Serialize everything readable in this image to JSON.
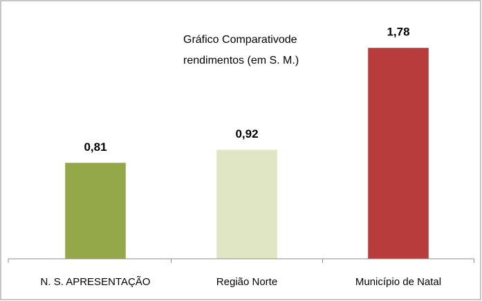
{
  "chart_data": {
    "type": "bar",
    "title": [
      "Gráfico Comparativode",
      "rendimentos (em S. M.)"
    ],
    "categories": [
      "N. S. APRESENTAÇÃO",
      "Região Norte",
      "Município de Natal"
    ],
    "values": [
      0.81,
      0.92,
      1.78
    ],
    "value_labels": [
      "0,81",
      "0,92",
      "1,78"
    ],
    "colors": [
      "#94a84a",
      "#e0e6c4",
      "#b83c3c"
    ],
    "ylim": [
      0,
      2
    ]
  }
}
